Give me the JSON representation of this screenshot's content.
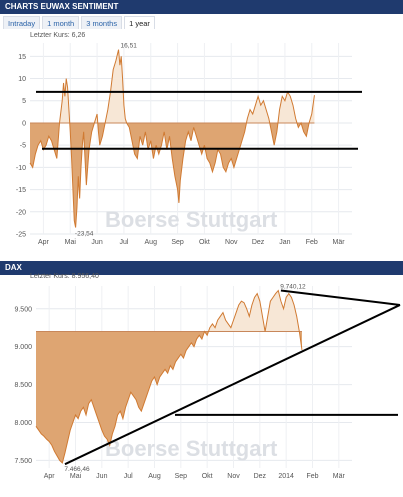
{
  "panels": {
    "sentiment": {
      "title": "CHARTS EUWAX SENTIMENT",
      "tabs": [
        "Intraday",
        "1 month",
        "3 months",
        "1 year"
      ],
      "active_tab": "1 year",
      "last_price": "Letzter Kurs: 6,26"
    },
    "dax": {
      "title": "DAX",
      "last_price": "Letzter Kurs: 8.956,40"
    },
    "watermark": "Boerse Stuttgart"
  },
  "chart_data": [
    {
      "type": "area",
      "ylim": [
        -25,
        18
      ],
      "yticks": [
        15,
        10,
        5,
        0,
        -5,
        -10,
        -15,
        -20,
        -25
      ],
      "ytick_labels": [
        "15",
        "10",
        "5",
        "0",
        "-5",
        "-10",
        "-15",
        "-20",
        "-25"
      ],
      "xtick_labels": [
        "Apr",
        "Mai",
        "Jun",
        "Jul",
        "Aug",
        "Sep",
        "Okt",
        "Nov",
        "Dez",
        "Jan",
        "Feb",
        "Mär"
      ],
      "baseline": 0,
      "fill_colors": {
        "above": "#f7e7d6",
        "below": "#dea572",
        "line": "#d07a32"
      },
      "annotations": [
        {
          "text": "16,51",
          "x": 3.3,
          "y": 16.51
        },
        {
          "text": "-23,54",
          "x": 1.6,
          "y": -23.54
        }
      ],
      "reference_lines": [
        7,
        -5.8
      ],
      "points": [
        [
          0,
          -9
        ],
        [
          0.1,
          -10
        ],
        [
          0.2,
          -7
        ],
        [
          0.3,
          -5
        ],
        [
          0.4,
          -4
        ],
        [
          0.5,
          -6
        ],
        [
          0.6,
          -5
        ],
        [
          0.7,
          -3
        ],
        [
          0.8,
          -4
        ],
        [
          0.9,
          -6
        ],
        [
          1,
          -8
        ],
        [
          1.05,
          -4
        ],
        [
          1.1,
          0
        ],
        [
          1.2,
          5
        ],
        [
          1.25,
          9
        ],
        [
          1.3,
          6
        ],
        [
          1.35,
          10
        ],
        [
          1.4,
          8
        ],
        [
          1.45,
          3
        ],
        [
          1.5,
          -2
        ],
        [
          1.55,
          -8
        ],
        [
          1.6,
          -15
        ],
        [
          1.65,
          -22
        ],
        [
          1.7,
          -23.54
        ],
        [
          1.75,
          -19
        ],
        [
          1.8,
          -12
        ],
        [
          1.85,
          -17
        ],
        [
          1.9,
          -10
        ],
        [
          1.95,
          -5
        ],
        [
          2.0,
          -2
        ],
        [
          2.05,
          -8
        ],
        [
          2.1,
          -14
        ],
        [
          2.15,
          -10
        ],
        [
          2.2,
          -6
        ],
        [
          2.3,
          -2
        ],
        [
          2.4,
          0
        ],
        [
          2.5,
          2
        ],
        [
          2.55,
          -2
        ],
        [
          2.6,
          -5
        ],
        [
          2.7,
          -3
        ],
        [
          2.8,
          0
        ],
        [
          2.9,
          3
        ],
        [
          3.0,
          7
        ],
        [
          3.1,
          12
        ],
        [
          3.2,
          14
        ],
        [
          3.3,
          16.51
        ],
        [
          3.35,
          13
        ],
        [
          3.4,
          15
        ],
        [
          3.45,
          10
        ],
        [
          3.5,
          4
        ],
        [
          3.55,
          1
        ],
        [
          3.6,
          0
        ],
        [
          3.7,
          -1
        ],
        [
          3.8,
          -4
        ],
        [
          3.9,
          -7
        ],
        [
          4.0,
          -8
        ],
        [
          4.1,
          -3
        ],
        [
          4.2,
          -5
        ],
        [
          4.3,
          -2
        ],
        [
          4.4,
          -6
        ],
        [
          4.5,
          -4
        ],
        [
          4.6,
          -8
        ],
        [
          4.7,
          -5
        ],
        [
          4.8,
          -7
        ],
        [
          4.9,
          -5
        ],
        [
          5.0,
          -2
        ],
        [
          5.1,
          -6
        ],
        [
          5.2,
          -3
        ],
        [
          5.3,
          -8
        ],
        [
          5.4,
          -12
        ],
        [
          5.5,
          -15
        ],
        [
          5.55,
          -18
        ],
        [
          5.6,
          -13
        ],
        [
          5.7,
          -8
        ],
        [
          5.8,
          -4
        ],
        [
          5.9,
          -2
        ],
        [
          6.0,
          -4
        ],
        [
          6.1,
          -1
        ],
        [
          6.2,
          -3
        ],
        [
          6.3,
          -5
        ],
        [
          6.4,
          -7
        ],
        [
          6.5,
          -5
        ],
        [
          6.6,
          -8
        ],
        [
          6.7,
          -9
        ],
        [
          6.8,
          -11
        ],
        [
          6.9,
          -9
        ],
        [
          7.0,
          -6
        ],
        [
          7.1,
          -7
        ],
        [
          7.2,
          -10
        ],
        [
          7.3,
          -11
        ],
        [
          7.4,
          -9
        ],
        [
          7.5,
          -8
        ],
        [
          7.6,
          -10
        ],
        [
          7.7,
          -8
        ],
        [
          7.8,
          -6
        ],
        [
          7.9,
          -4
        ],
        [
          8.0,
          -2
        ],
        [
          8.1,
          1
        ],
        [
          8.2,
          3
        ],
        [
          8.3,
          2
        ],
        [
          8.4,
          4
        ],
        [
          8.5,
          6
        ],
        [
          8.6,
          4
        ],
        [
          8.7,
          5
        ],
        [
          8.8,
          3
        ],
        [
          8.9,
          1
        ],
        [
          9.0,
          -2
        ],
        [
          9.1,
          -5
        ],
        [
          9.2,
          -2
        ],
        [
          9.3,
          3
        ],
        [
          9.4,
          6
        ],
        [
          9.5,
          5
        ],
        [
          9.6,
          7
        ],
        [
          9.7,
          6
        ],
        [
          9.8,
          4
        ],
        [
          9.9,
          1
        ],
        [
          10.0,
          -1
        ],
        [
          10.1,
          0
        ],
        [
          10.2,
          -2
        ],
        [
          10.3,
          -3
        ],
        [
          10.4,
          0
        ],
        [
          10.5,
          2
        ],
        [
          10.6,
          6.26
        ]
      ]
    },
    {
      "type": "area",
      "ylim": [
        7400,
        9800
      ],
      "yticks": [
        7500,
        8000,
        8500,
        9000,
        9500
      ],
      "ytick_labels": [
        "7.500",
        "8.000",
        "8.500",
        "9.000",
        "9.500"
      ],
      "xtick_labels": [
        "Apr",
        "Mai",
        "Jun",
        "Jul",
        "Aug",
        "Sep",
        "Okt",
        "Nov",
        "Dez",
        "2014",
        "Feb",
        "Mär"
      ],
      "baseline": 9200,
      "fill_colors": {
        "above": "#f7e7d6",
        "below": "#dea572",
        "line": "#d07a32"
      },
      "annotations": [
        {
          "text": "9.740,12",
          "x": 9.2,
          "y": 9740.12
        },
        {
          "text": "7.466,46",
          "x": 1.0,
          "y": 7466.46
        }
      ],
      "reference_lines": [
        8100
      ],
      "trendlines": [
        {
          "from": [
            1.1,
            7450
          ],
          "to": [
            12.0,
            9550
          ]
        },
        {
          "from": [
            9.3,
            9740
          ],
          "to": [
            12.0,
            9550
          ]
        }
      ],
      "points": [
        [
          0,
          7950
        ],
        [
          0.1,
          7900
        ],
        [
          0.2,
          7850
        ],
        [
          0.3,
          7820
        ],
        [
          0.4,
          7780
        ],
        [
          0.5,
          7750
        ],
        [
          0.6,
          7700
        ],
        [
          0.7,
          7620
        ],
        [
          0.8,
          7560
        ],
        [
          0.9,
          7500
        ],
        [
          1.0,
          7466.46
        ],
        [
          1.1,
          7600
        ],
        [
          1.2,
          7750
        ],
        [
          1.3,
          7900
        ],
        [
          1.4,
          8000
        ],
        [
          1.5,
          8100
        ],
        [
          1.6,
          8050
        ],
        [
          1.7,
          8150
        ],
        [
          1.8,
          8200
        ],
        [
          1.9,
          8100
        ],
        [
          2.0,
          8250
        ],
        [
          2.1,
          8300
        ],
        [
          2.2,
          8200
        ],
        [
          2.3,
          8100
        ],
        [
          2.4,
          8000
        ],
        [
          2.5,
          7900
        ],
        [
          2.6,
          7820
        ],
        [
          2.7,
          7780
        ],
        [
          2.8,
          7700
        ],
        [
          2.9,
          7850
        ],
        [
          3.0,
          7950
        ],
        [
          3.1,
          8100
        ],
        [
          3.2,
          8150
        ],
        [
          3.3,
          8050
        ],
        [
          3.4,
          8200
        ],
        [
          3.5,
          8300
        ],
        [
          3.6,
          8400
        ],
        [
          3.7,
          8350
        ],
        [
          3.8,
          8300
        ],
        [
          3.9,
          8200
        ],
        [
          4.0,
          8150
        ],
        [
          4.1,
          8250
        ],
        [
          4.2,
          8350
        ],
        [
          4.3,
          8450
        ],
        [
          4.4,
          8550
        ],
        [
          4.5,
          8600
        ],
        [
          4.6,
          8500
        ],
        [
          4.7,
          8600
        ],
        [
          4.8,
          8650
        ],
        [
          4.9,
          8700
        ],
        [
          5.0,
          8650
        ],
        [
          5.1,
          8750
        ],
        [
          5.2,
          8700
        ],
        [
          5.3,
          8800
        ],
        [
          5.4,
          8850
        ],
        [
          5.5,
          8900
        ],
        [
          5.6,
          8850
        ],
        [
          5.7,
          8950
        ],
        [
          5.8,
          9000
        ],
        [
          5.9,
          9050
        ],
        [
          6.0,
          9000
        ],
        [
          6.1,
          9100
        ],
        [
          6.2,
          9150
        ],
        [
          6.3,
          9100
        ],
        [
          6.4,
          9200
        ],
        [
          6.5,
          9150
        ],
        [
          6.6,
          9250
        ],
        [
          6.7,
          9300
        ],
        [
          6.8,
          9250
        ],
        [
          6.9,
          9350
        ],
        [
          7.0,
          9400
        ],
        [
          7.1,
          9450
        ],
        [
          7.2,
          9350
        ],
        [
          7.3,
          9300
        ],
        [
          7.4,
          9250
        ],
        [
          7.5,
          9350
        ],
        [
          7.6,
          9450
        ],
        [
          7.7,
          9550
        ],
        [
          7.8,
          9600
        ],
        [
          7.9,
          9580
        ],
        [
          8.0,
          9500
        ],
        [
          8.1,
          9400
        ],
        [
          8.2,
          9550
        ],
        [
          8.3,
          9650
        ],
        [
          8.4,
          9700
        ],
        [
          8.5,
          9600
        ],
        [
          8.6,
          9400
        ],
        [
          8.7,
          9200
        ],
        [
          8.8,
          9400
        ],
        [
          8.9,
          9600
        ],
        [
          9.0,
          9650
        ],
        [
          9.1,
          9700
        ],
        [
          9.2,
          9740.12
        ],
        [
          9.3,
          9600
        ],
        [
          9.4,
          9500
        ],
        [
          9.5,
          9650
        ],
        [
          9.6,
          9700
        ],
        [
          9.7,
          9650
        ],
        [
          9.8,
          9550
        ],
        [
          9.9,
          9400
        ],
        [
          10.0,
          9200
        ],
        [
          10.1,
          8956.4
        ]
      ]
    }
  ]
}
